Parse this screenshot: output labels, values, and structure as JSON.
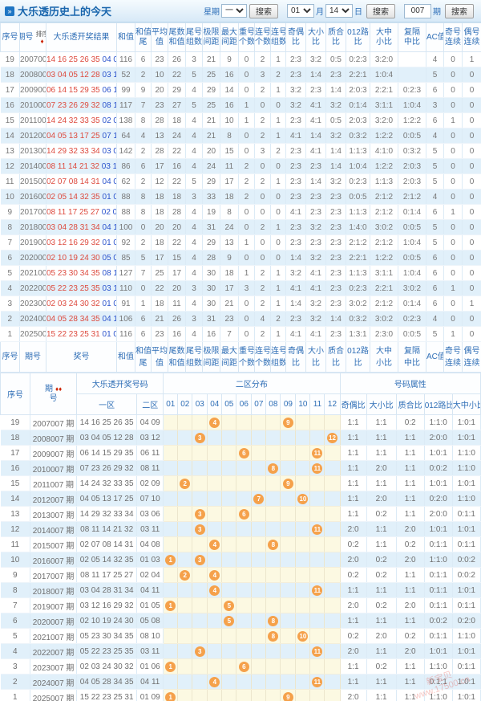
{
  "header": {
    "title": "大乐透历史上的今天",
    "week_label": "星期",
    "week_value": "一",
    "search_label": "搜索",
    "month_value": "01",
    "month_label": "月",
    "day_value": "14",
    "day_label": "日",
    "issue_value": "007",
    "issue_label": "期"
  },
  "icons": {
    "title_bullet": "»",
    "sort_label": "排序",
    "sort_diamond": "♦",
    "sort_diamond2": "♦♦"
  },
  "table1": {
    "header_cols": [
      [
        "序号"
      ],
      [
        "期号"
      ],
      [
        "大乐透开奖结果"
      ],
      [
        "和值"
      ],
      [
        "和值",
        "尾"
      ],
      [
        "平均",
        "值"
      ],
      [
        "尾数",
        "和值"
      ],
      [
        "尾号",
        "组数"
      ],
      [
        "极限",
        "间距"
      ],
      [
        "最大",
        "间距"
      ],
      [
        "重号",
        "个数"
      ],
      [
        "连号",
        "个数"
      ],
      [
        "连号",
        "组数"
      ],
      [
        "奇偶",
        "比"
      ],
      [
        "大小",
        "比"
      ],
      [
        "质合",
        "比"
      ],
      [
        "012路",
        "比"
      ],
      [
        "大中",
        "小比"
      ],
      [
        "复隔",
        "中比"
      ],
      [
        "AC值"
      ],
      [
        "奇号",
        "连续"
      ],
      [
        "偶号",
        "连续"
      ]
    ],
    "footer_cols": [
      [
        "序号"
      ],
      [
        "期号"
      ],
      [
        "奖号"
      ],
      [
        "和值"
      ],
      [
        "和值",
        "尾"
      ],
      [
        "平均",
        "值"
      ],
      [
        "尾数",
        "和值"
      ],
      [
        "尾号",
        "组数"
      ],
      [
        "极限",
        "间距"
      ],
      [
        "最大",
        "间距"
      ],
      [
        "重号",
        "个数"
      ],
      [
        "连号",
        "个数"
      ],
      [
        "连号",
        "组数"
      ],
      [
        "奇偶",
        "比"
      ],
      [
        "大小",
        "比"
      ],
      [
        "质合",
        "比"
      ],
      [
        "012路",
        "比"
      ],
      [
        "大中",
        "小比"
      ],
      [
        "复隔",
        "中比"
      ],
      [
        "AC值"
      ],
      [
        "奇号",
        "连续"
      ],
      [
        "偶号",
        "连续"
      ]
    ],
    "rows": [
      {
        "idx": "19",
        "issue": "2007007",
        "front": "14 16 25 26 35",
        "back": "04 09",
        "vals": [
          "116",
          "6",
          "23",
          "26",
          "3",
          "21",
          "9",
          "0",
          "2",
          "1",
          "2:3",
          "3:2",
          "0:5",
          "0:2:3",
          "3:2:0",
          "",
          "4",
          "0",
          "1"
        ]
      },
      {
        "idx": "18",
        "issue": "2008007",
        "front": "03 04 05 12 28",
        "back": "03 12",
        "vals": [
          "52",
          "2",
          "10",
          "22",
          "5",
          "25",
          "16",
          "0",
          "3",
          "2",
          "2:3",
          "1:4",
          "2:3",
          "2:2:1",
          "1:0:4",
          "",
          "5",
          "0",
          "0"
        ]
      },
      {
        "idx": "17",
        "issue": "2009007",
        "front": "06 14 15 29 35",
        "back": "06 11",
        "vals": [
          "99",
          "9",
          "20",
          "29",
          "4",
          "29",
          "14",
          "0",
          "2",
          "1",
          "3:2",
          "2:3",
          "1:4",
          "2:0:3",
          "2:2:1",
          "0:2:3",
          "6",
          "0",
          "0"
        ]
      },
      {
        "idx": "16",
        "issue": "2010007",
        "front": "07 23 26 29 32",
        "back": "08 11",
        "vals": [
          "117",
          "7",
          "23",
          "27",
          "5",
          "25",
          "16",
          "1",
          "0",
          "0",
          "3:2",
          "4:1",
          "3:2",
          "0:1:4",
          "3:1:1",
          "1:0:4",
          "3",
          "0",
          "0"
        ]
      },
      {
        "idx": "15",
        "issue": "2011007",
        "front": "14 24 32 33 35",
        "back": "02 09",
        "vals": [
          "138",
          "8",
          "28",
          "18",
          "4",
          "21",
          "10",
          "1",
          "2",
          "1",
          "2:3",
          "4:1",
          "0:5",
          "2:0:3",
          "3:2:0",
          "1:2:2",
          "6",
          "1",
          "0"
        ]
      },
      {
        "idx": "14",
        "issue": "2012007",
        "front": "04 05 13 17 25",
        "back": "07 10",
        "vals": [
          "64",
          "4",
          "13",
          "24",
          "4",
          "21",
          "8",
          "0",
          "2",
          "1",
          "4:1",
          "1:4",
          "3:2",
          "0:3:2",
          "1:2:2",
          "0:0:5",
          "4",
          "0",
          "0"
        ]
      },
      {
        "idx": "13",
        "issue": "2013007",
        "front": "14 29 32 33 34",
        "back": "03 06",
        "vals": [
          "142",
          "2",
          "28",
          "22",
          "4",
          "20",
          "15",
          "0",
          "3",
          "2",
          "2:3",
          "4:1",
          "1:4",
          "1:1:3",
          "4:1:0",
          "0:3:2",
          "5",
          "0",
          "0"
        ]
      },
      {
        "idx": "12",
        "issue": "2014007",
        "front": "08 11 14 21 32",
        "back": "03 11",
        "vals": [
          "86",
          "6",
          "17",
          "16",
          "4",
          "24",
          "11",
          "2",
          "0",
          "0",
          "2:3",
          "2:3",
          "1:4",
          "1:0:4",
          "1:2:2",
          "2:0:3",
          "5",
          "0",
          "0"
        ]
      },
      {
        "idx": "11",
        "issue": "2015007",
        "front": "02 07 08 14 31",
        "back": "04 08",
        "vals": [
          "62",
          "2",
          "12",
          "22",
          "5",
          "29",
          "17",
          "2",
          "2",
          "1",
          "2:3",
          "1:4",
          "3:2",
          "0:2:3",
          "1:1:3",
          "2:0:3",
          "5",
          "0",
          "0"
        ]
      },
      {
        "idx": "10",
        "issue": "2016007",
        "front": "02 05 14 32 35",
        "back": "01 03",
        "vals": [
          "88",
          "8",
          "18",
          "18",
          "3",
          "33",
          "18",
          "2",
          "0",
          "0",
          "2:3",
          "2:3",
          "2:3",
          "0:0:5",
          "2:1:2",
          "2:1:2",
          "4",
          "0",
          "0"
        ]
      },
      {
        "idx": "9",
        "issue": "2017007",
        "front": "08 11 17 25 27",
        "back": "02 04",
        "vals": [
          "88",
          "8",
          "18",
          "28",
          "4",
          "19",
          "8",
          "0",
          "0",
          "0",
          "4:1",
          "2:3",
          "2:3",
          "1:1:3",
          "2:1:2",
          "0:1:4",
          "6",
          "1",
          "0"
        ]
      },
      {
        "idx": "8",
        "issue": "2018007",
        "front": "03 04 28 31 34",
        "back": "04 11",
        "vals": [
          "100",
          "0",
          "20",
          "20",
          "4",
          "31",
          "24",
          "0",
          "2",
          "1",
          "2:3",
          "3:2",
          "2:3",
          "1:4:0",
          "3:0:2",
          "0:0:5",
          "5",
          "0",
          "0"
        ]
      },
      {
        "idx": "7",
        "issue": "2019007",
        "front": "03 12 16 29 32",
        "back": "01 05",
        "vals": [
          "92",
          "2",
          "18",
          "22",
          "4",
          "29",
          "13",
          "1",
          "0",
          "0",
          "2:3",
          "2:3",
          "2:3",
          "2:1:2",
          "2:1:2",
          "1:0:4",
          "5",
          "0",
          "0"
        ]
      },
      {
        "idx": "6",
        "issue": "2020007",
        "front": "02 10 19 24 30",
        "back": "05 08",
        "vals": [
          "85",
          "5",
          "17",
          "15",
          "4",
          "28",
          "9",
          "0",
          "0",
          "0",
          "1:4",
          "3:2",
          "2:3",
          "2:2:1",
          "1:2:2",
          "0:0:5",
          "6",
          "0",
          "0"
        ]
      },
      {
        "idx": "5",
        "issue": "2021007",
        "front": "05 23 30 34 35",
        "back": "08 10",
        "vals": [
          "127",
          "7",
          "25",
          "17",
          "4",
          "30",
          "18",
          "1",
          "2",
          "1",
          "3:2",
          "4:1",
          "2:3",
          "1:1:3",
          "3:1:1",
          "1:0:4",
          "6",
          "0",
          "0"
        ]
      },
      {
        "idx": "4",
        "issue": "2022007",
        "front": "05 22 23 25 35",
        "back": "03 11",
        "vals": [
          "110",
          "0",
          "22",
          "20",
          "3",
          "30",
          "17",
          "3",
          "2",
          "1",
          "4:1",
          "4:1",
          "2:3",
          "0:2:3",
          "2:2:1",
          "3:0:2",
          "6",
          "1",
          "0"
        ]
      },
      {
        "idx": "3",
        "issue": "2023007",
        "front": "02 03 24 30 32",
        "back": "01 06",
        "vals": [
          "91",
          "1",
          "18",
          "11",
          "4",
          "30",
          "21",
          "0",
          "2",
          "1",
          "1:4",
          "3:2",
          "2:3",
          "3:0:2",
          "2:1:2",
          "0:1:4",
          "6",
          "0",
          "1"
        ]
      },
      {
        "idx": "2",
        "issue": "2024007",
        "front": "04 05 28 34 35",
        "back": "04 11",
        "vals": [
          "106",
          "6",
          "21",
          "26",
          "3",
          "31",
          "23",
          "0",
          "4",
          "2",
          "2:3",
          "3:2",
          "1:4",
          "0:3:2",
          "3:0:2",
          "0:2:3",
          "4",
          "0",
          "0"
        ]
      },
      {
        "idx": "1",
        "issue": "2025007",
        "front": "15 22 23 25 31",
        "back": "01 09",
        "vals": [
          "116",
          "6",
          "23",
          "16",
          "4",
          "16",
          "7",
          "0",
          "2",
          "1",
          "4:1",
          "4:1",
          "2:3",
          "1:3:1",
          "2:3:0",
          "0:0:5",
          "5",
          "1",
          "0"
        ]
      }
    ]
  },
  "table2": {
    "header": {
      "idx": "序号",
      "issue_top": "期",
      "issue_bottom": "号",
      "group_result": "大乐透开奖号码",
      "group_dist": "二区分布",
      "group_attr": "号码属性",
      "zone1": "一区",
      "zone2": "二区",
      "numbers": [
        "01",
        "02",
        "03",
        "04",
        "05",
        "06",
        "07",
        "08",
        "09",
        "10",
        "11",
        "12"
      ],
      "attrs": [
        "奇偶比",
        "大小比",
        "质合比",
        "012路比",
        "大中小比"
      ]
    },
    "rows": [
      {
        "idx": "19",
        "issue": "2007007 期",
        "front": "14 16 25 26 35",
        "back": "04 09",
        "balls": [
          4,
          9
        ],
        "attrs": [
          "1:1",
          "1:1",
          "0:2",
          "1:1:0",
          "1:0:1"
        ]
      },
      {
        "idx": "18",
        "issue": "2008007 期",
        "front": "03 04 05 12 28",
        "back": "03 12",
        "balls": [
          3,
          12
        ],
        "attrs": [
          "1:1",
          "1:1",
          "1:1",
          "2:0:0",
          "1:0:1"
        ]
      },
      {
        "idx": "17",
        "issue": "2009007 期",
        "front": "06 14 15 29 35",
        "back": "06 11",
        "balls": [
          6,
          11
        ],
        "attrs": [
          "1:1",
          "1:1",
          "1:1",
          "1:0:1",
          "1:1:0"
        ]
      },
      {
        "idx": "16",
        "issue": "2010007 期",
        "front": "07 23 26 29 32",
        "back": "08 11",
        "balls": [
          8,
          11
        ],
        "attrs": [
          "1:1",
          "2:0",
          "1:1",
          "0:0:2",
          "1:1:0"
        ]
      },
      {
        "idx": "15",
        "issue": "2011007 期",
        "front": "14 24 32 33 35",
        "back": "02 09",
        "balls": [
          2,
          9
        ],
        "attrs": [
          "1:1",
          "1:1",
          "1:1",
          "1:0:1",
          "1:0:1"
        ]
      },
      {
        "idx": "14",
        "issue": "2012007 期",
        "front": "04 05 13 17 25",
        "back": "07 10",
        "balls": [
          7,
          10
        ],
        "attrs": [
          "1:1",
          "2:0",
          "1:1",
          "0:2:0",
          "1:1:0"
        ]
      },
      {
        "idx": "13",
        "issue": "2013007 期",
        "front": "14 29 32 33 34",
        "back": "03 06",
        "balls": [
          3,
          6
        ],
        "attrs": [
          "1:1",
          "0:2",
          "1:1",
          "2:0:0",
          "0:1:1"
        ]
      },
      {
        "idx": "12",
        "issue": "2014007 期",
        "front": "08 11 14 21 32",
        "back": "03 11",
        "balls": [
          3,
          11
        ],
        "attrs": [
          "2:0",
          "1:1",
          "2:0",
          "1:0:1",
          "1:0:1"
        ]
      },
      {
        "idx": "11",
        "issue": "2015007 期",
        "front": "02 07 08 14 31",
        "back": "04 08",
        "balls": [
          4,
          8
        ],
        "attrs": [
          "0:2",
          "1:1",
          "0:2",
          "0:1:1",
          "0:1:1"
        ]
      },
      {
        "idx": "10",
        "issue": "2016007 期",
        "front": "02 05 14 32 35",
        "back": "01 03",
        "balls": [
          1,
          3
        ],
        "attrs": [
          "2:0",
          "0:2",
          "2:0",
          "1:1:0",
          "0:0:2"
        ]
      },
      {
        "idx": "9",
        "issue": "2017007 期",
        "front": "08 11 17 25 27",
        "back": "02 04",
        "balls": [
          2,
          4
        ],
        "attrs": [
          "0:2",
          "0:2",
          "1:1",
          "0:1:1",
          "0:0:2"
        ]
      },
      {
        "idx": "8",
        "issue": "2018007 期",
        "front": "03 04 28 31 34",
        "back": "04 11",
        "balls": [
          4,
          11
        ],
        "attrs": [
          "1:1",
          "1:1",
          "1:1",
          "0:1:1",
          "1:0:1"
        ]
      },
      {
        "idx": "7",
        "issue": "2019007 期",
        "front": "03 12 16 29 32",
        "back": "01 05",
        "balls": [
          1,
          5
        ],
        "attrs": [
          "2:0",
          "0:2",
          "2:0",
          "0:1:1",
          "0:1:1"
        ]
      },
      {
        "idx": "6",
        "issue": "2020007 期",
        "front": "02 10 19 24 30",
        "back": "05 08",
        "balls": [
          5,
          8
        ],
        "attrs": [
          "1:1",
          "1:1",
          "1:1",
          "0:0:2",
          "0:2:0"
        ]
      },
      {
        "idx": "5",
        "issue": "2021007 期",
        "front": "05 23 30 34 35",
        "back": "08 10",
        "balls": [
          8,
          10
        ],
        "attrs": [
          "0:2",
          "2:0",
          "0:2",
          "0:1:1",
          "1:1:0"
        ]
      },
      {
        "idx": "4",
        "issue": "2022007 期",
        "front": "05 22 23 25 35",
        "back": "03 11",
        "balls": [
          3,
          11
        ],
        "attrs": [
          "2:0",
          "1:1",
          "2:0",
          "1:0:1",
          "1:0:1"
        ]
      },
      {
        "idx": "3",
        "issue": "2023007 期",
        "front": "02 03 24 30 32",
        "back": "01 06",
        "balls": [
          1,
          6
        ],
        "attrs": [
          "1:1",
          "0:2",
          "1:1",
          "1:1:0",
          "0:1:1"
        ]
      },
      {
        "idx": "2",
        "issue": "2024007 期",
        "front": "04 05 28 34 35",
        "back": "04 11",
        "balls": [
          4,
          11
        ],
        "attrs": [
          "1:1",
          "1:1",
          "1:1",
          "0:1:1",
          "1:0:1"
        ]
      },
      {
        "idx": "1",
        "issue": "2025007 期",
        "front": "15 22 23 25 31",
        "back": "01 09",
        "balls": [
          1,
          9
        ],
        "attrs": [
          "2:0",
          "1:1",
          "1:1",
          "1:1:0",
          "1:0:1"
        ]
      }
    ]
  },
  "watermark": {
    "line1": "新宝贝",
    "line2": "www.17500.cn"
  }
}
